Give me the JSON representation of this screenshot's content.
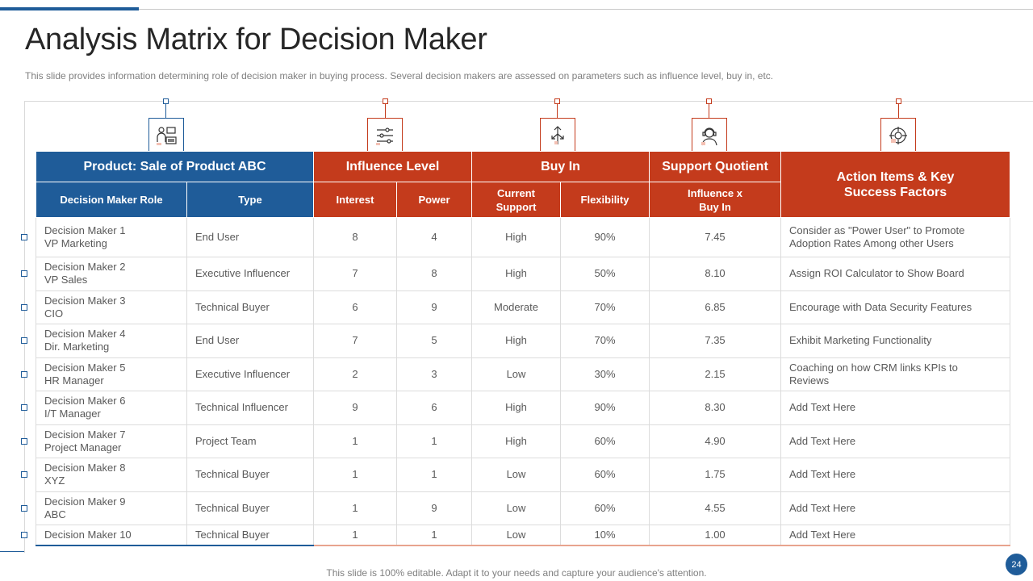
{
  "slide": {
    "title": "Analysis Matrix for Decision Maker",
    "subtitle": "This slide provides  information determining role of decision maker in buying process. Several  decision makers are assessed on parameters  such as influence level,  buy in, etc.",
    "footer": "This slide is 100% editable. Adapt it to your needs and capture your audience's attention.",
    "page_number": "24"
  },
  "icons": [
    {
      "name": "decision-maker-icon",
      "color": "#1f5c99"
    },
    {
      "name": "sliders-icon",
      "color": "#c43b1c"
    },
    {
      "name": "arrows-icon",
      "color": "#c43b1c"
    },
    {
      "name": "support-agent-icon",
      "color": "#c43b1c"
    },
    {
      "name": "target-puzzle-icon",
      "color": "#c43b1c"
    }
  ],
  "colors": {
    "blue": "#1f5c99",
    "red": "#c43b1c"
  },
  "table": {
    "group_headers": {
      "product": "Product: Sale of Product ABC",
      "influence": "Influence Level",
      "buy_in": "Buy In",
      "support": "Support Quotient",
      "action": "Action Items & Key Success Factors"
    },
    "sub_headers": {
      "role": "Decision Maker Role",
      "type": "Type",
      "interest": "Interest",
      "power": "Power",
      "current_support": "Current Support",
      "flexibility": "Flexibility",
      "influence_x_buy_in": "Influence  x Buy In"
    },
    "rows": [
      {
        "role_1": "Decision Maker 1",
        "role_2": "VP Marketing",
        "type": "End User",
        "interest": "8",
        "power": "4",
        "current_support": "High",
        "flexibility": "90%",
        "quotient": "7.45",
        "action": "Consider as  \"Power User\" to Promote Adoption Rates Among other Users"
      },
      {
        "role_1": "Decision Maker 2",
        "role_2": "VP Sales",
        "type": "Executive Influencer",
        "interest": "7",
        "power": "8",
        "current_support": "High",
        "flexibility": "50%",
        "quotient": "8.10",
        "action": "Assign ROI Calculator to Show Board"
      },
      {
        "role_1": "Decision Maker 3",
        "role_2": "CIO",
        "type": "Technical Buyer",
        "interest": "6",
        "power": "9",
        "current_support": "Moderate",
        "flexibility": "70%",
        "quotient": "6.85",
        "action": "Encourage  with Data Security Features"
      },
      {
        "role_1": "Decision Maker 4",
        "role_2": "Dir. Marketing",
        "type": "End User",
        "interest": "7",
        "power": "5",
        "current_support": "High",
        "flexibility": "70%",
        "quotient": "7.35",
        "action": "Exhibit Marketing Functionality"
      },
      {
        "role_1": "Decision Maker 5",
        "role_2": "HR Manager",
        "type": "Executive Influencer",
        "interest": "2",
        "power": "3",
        "current_support": "Low",
        "flexibility": "30%",
        "quotient": "2.15",
        "action": "Coaching  on how CRM links KPIs to Reviews"
      },
      {
        "role_1": "Decision Maker 6",
        "role_2": "I/T Manager",
        "type": "Technical Influencer",
        "interest": "9",
        "power": "6",
        "current_support": "High",
        "flexibility": "90%",
        "quotient": "8.30",
        "action": "Add Text Here"
      },
      {
        "role_1": "Decision Maker 7",
        "role_2": "Project Manager",
        "type": "Project Team",
        "interest": "1",
        "power": "1",
        "current_support": "High",
        "flexibility": "60%",
        "quotient": "4.90",
        "action": "Add Text Here"
      },
      {
        "role_1": "Decision Maker 8",
        "role_2": "XYZ",
        "type": "Technical Buyer",
        "interest": "1",
        "power": "1",
        "current_support": "Low",
        "flexibility": "60%",
        "quotient": "1.75",
        "action": "Add Text Here"
      },
      {
        "role_1": "Decision Maker 9",
        "role_2": "ABC",
        "type": "Technical Buyer",
        "interest": "1",
        "power": "9",
        "current_support": "Low",
        "flexibility": "60%",
        "quotient": "4.55",
        "action": "Add Text Here"
      },
      {
        "role_1": "Decision Maker 10",
        "role_2": "",
        "type": "Technical Buyer",
        "interest": "1",
        "power": "1",
        "current_support": "Low",
        "flexibility": "10%",
        "quotient": "1.00",
        "action": "Add Text Here"
      }
    ]
  }
}
